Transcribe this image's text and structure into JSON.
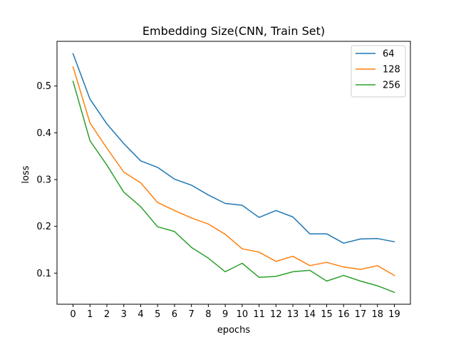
{
  "chart_data": {
    "type": "line",
    "title": "Embedding Size(CNN, Train Set)",
    "xlabel": "epochs",
    "ylabel": "loss",
    "x": [
      0,
      1,
      2,
      3,
      4,
      5,
      6,
      7,
      8,
      9,
      10,
      11,
      12,
      13,
      14,
      15,
      16,
      17,
      18,
      19
    ],
    "xlim": [
      -0.95,
      19.95
    ],
    "ylim": [
      0.0335,
      0.5955
    ],
    "yticks": [
      0.1,
      0.2,
      0.3,
      0.4,
      0.5
    ],
    "ytick_labels": [
      "0.1",
      "0.2",
      "0.3",
      "0.4",
      "0.5"
    ],
    "grid": false,
    "legend_position": "top-right",
    "series": [
      {
        "name": "64",
        "color": "#1f77b4",
        "values": [
          0.569,
          0.472,
          0.419,
          0.377,
          0.34,
          0.326,
          0.301,
          0.288,
          0.267,
          0.249,
          0.245,
          0.219,
          0.234,
          0.22,
          0.184,
          0.184,
          0.164,
          0.173,
          0.174,
          0.167
        ]
      },
      {
        "name": "128",
        "color": "#ff7f0e",
        "values": [
          0.541,
          0.421,
          0.367,
          0.316,
          0.293,
          0.251,
          0.234,
          0.218,
          0.205,
          0.183,
          0.152,
          0.145,
          0.125,
          0.136,
          0.116,
          0.123,
          0.113,
          0.108,
          0.116,
          0.095
        ]
      },
      {
        "name": "256",
        "color": "#2ca02c",
        "values": [
          0.51,
          0.383,
          0.331,
          0.273,
          0.242,
          0.199,
          0.189,
          0.155,
          0.132,
          0.103,
          0.121,
          0.091,
          0.093,
          0.103,
          0.106,
          0.083,
          0.095,
          0.083,
          0.073,
          0.059
        ]
      }
    ]
  }
}
